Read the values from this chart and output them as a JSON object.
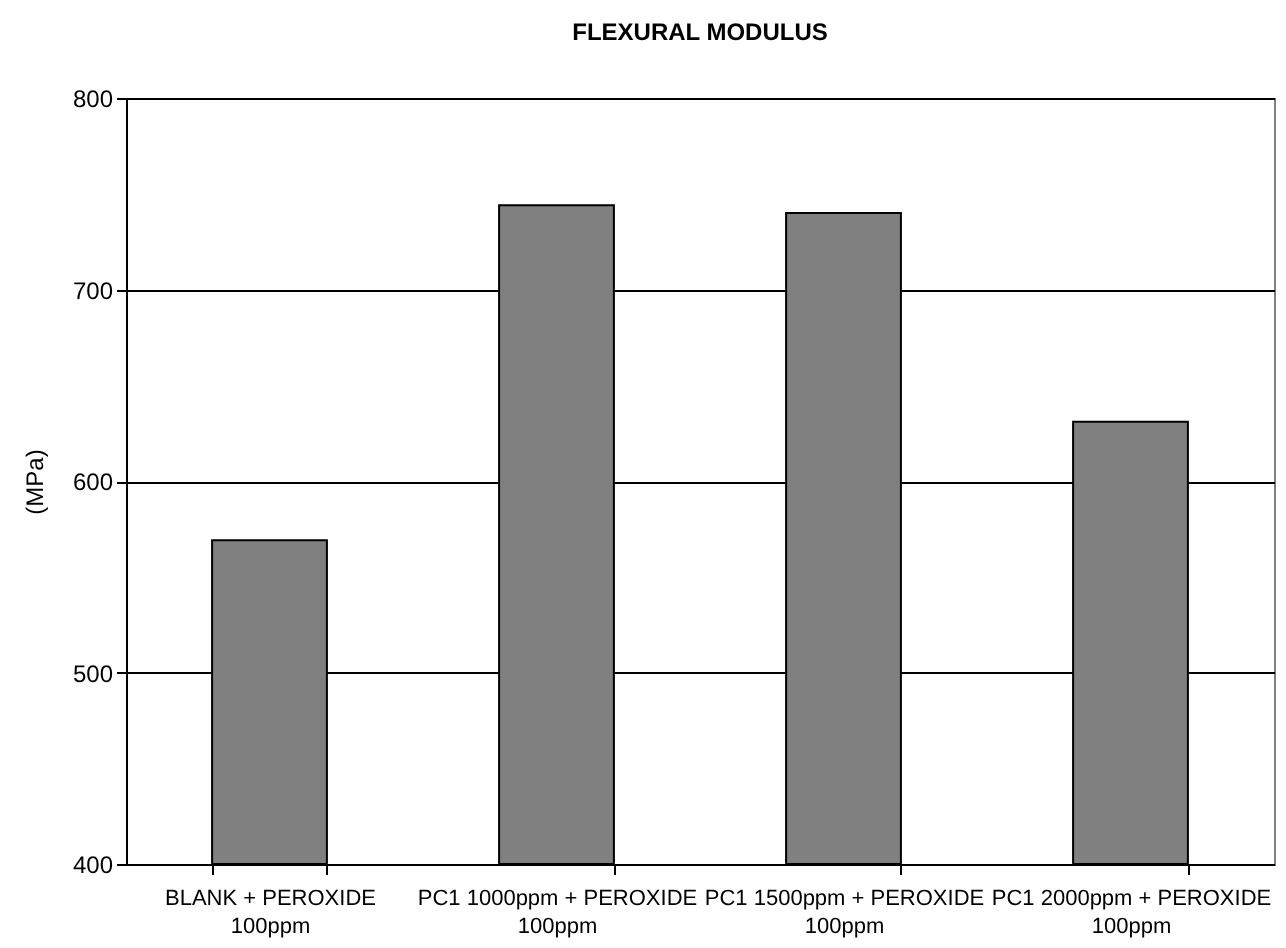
{
  "chart_data": {
    "type": "bar",
    "title": "FLEXURAL MODULUS",
    "ylabel": "(MPa)",
    "categories": [
      "BLANK + PEROXIDE 100ppm",
      "PC1 1000ppm + PEROXIDE 100ppm",
      "PC1 1500ppm + PEROXIDE 100ppm",
      "PC1 2000ppm +  PEROXIDE 100ppm"
    ],
    "values": [
      569,
      744,
      740,
      631
    ],
    "color": "#808080",
    "ylim": [
      400,
      800
    ],
    "yticks": [
      400,
      500,
      600,
      700,
      800
    ],
    "grid": "y"
  }
}
